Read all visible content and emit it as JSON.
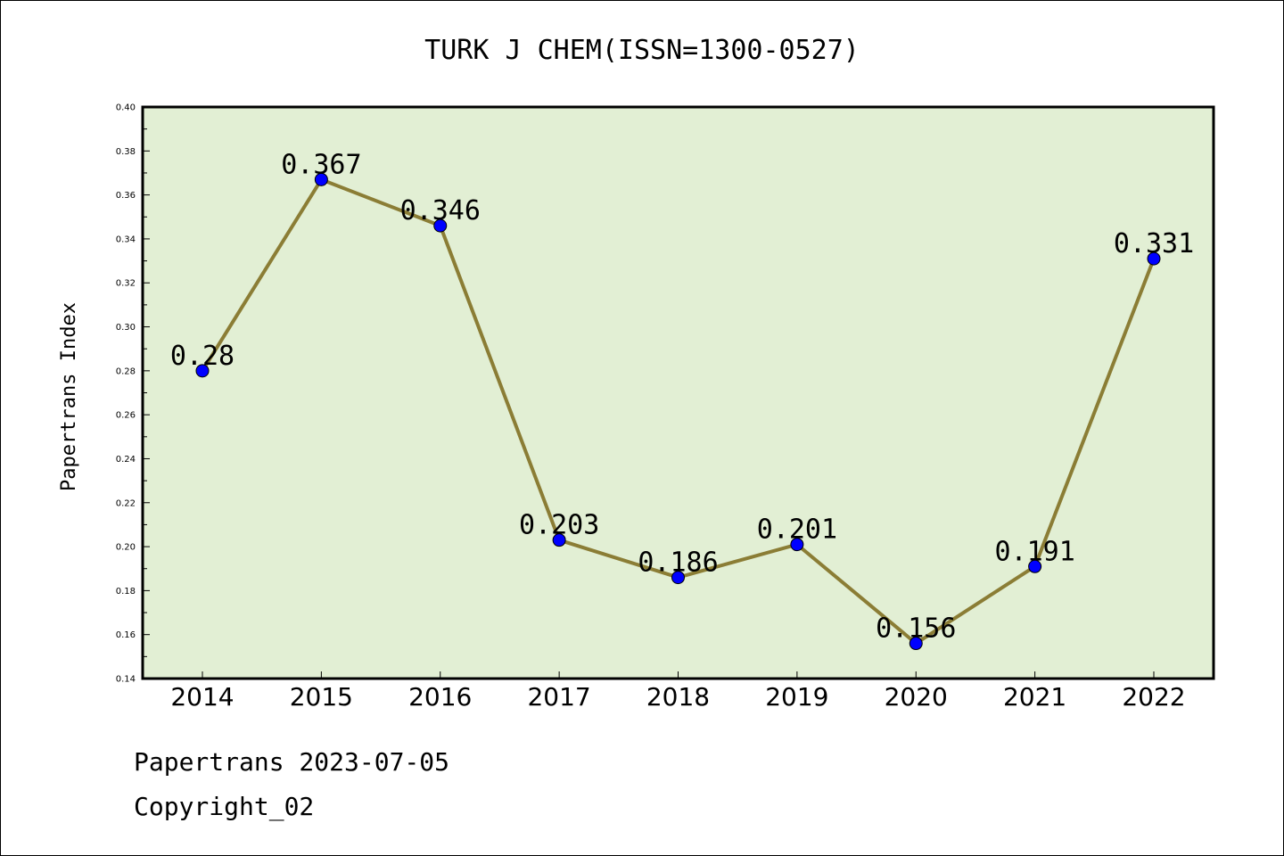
{
  "footer": {
    "line1": "Papertrans 2023-07-05",
    "line2": "Copyright_02"
  },
  "chart_data": {
    "type": "line",
    "title": "TURK J CHEM(ISSN=1300-0527)",
    "xlabel": "",
    "ylabel": "Papertrans Index",
    "categories": [
      "2014",
      "2015",
      "2016",
      "2017",
      "2018",
      "2019",
      "2020",
      "2021",
      "2022"
    ],
    "values": [
      0.28,
      0.367,
      0.346,
      0.203,
      0.186,
      0.201,
      0.156,
      0.191,
      0.331
    ],
    "data_labels": [
      "0.28",
      "0.367",
      "0.346",
      "0.203",
      "0.186",
      "0.201",
      "0.156",
      "0.191",
      "0.331"
    ],
    "ylim": [
      0.14,
      0.4
    ],
    "yticks": [
      "0.14",
      "0.16",
      "0.18",
      "0.20",
      "0.22",
      "0.24",
      "0.26",
      "0.28",
      "0.30",
      "0.32",
      "0.34",
      "0.36",
      "0.38",
      "0.40"
    ],
    "grid": false,
    "colors": {
      "plot_background": "#e2efd4",
      "line": "#8b7d35",
      "marker": "#0000ff"
    }
  }
}
